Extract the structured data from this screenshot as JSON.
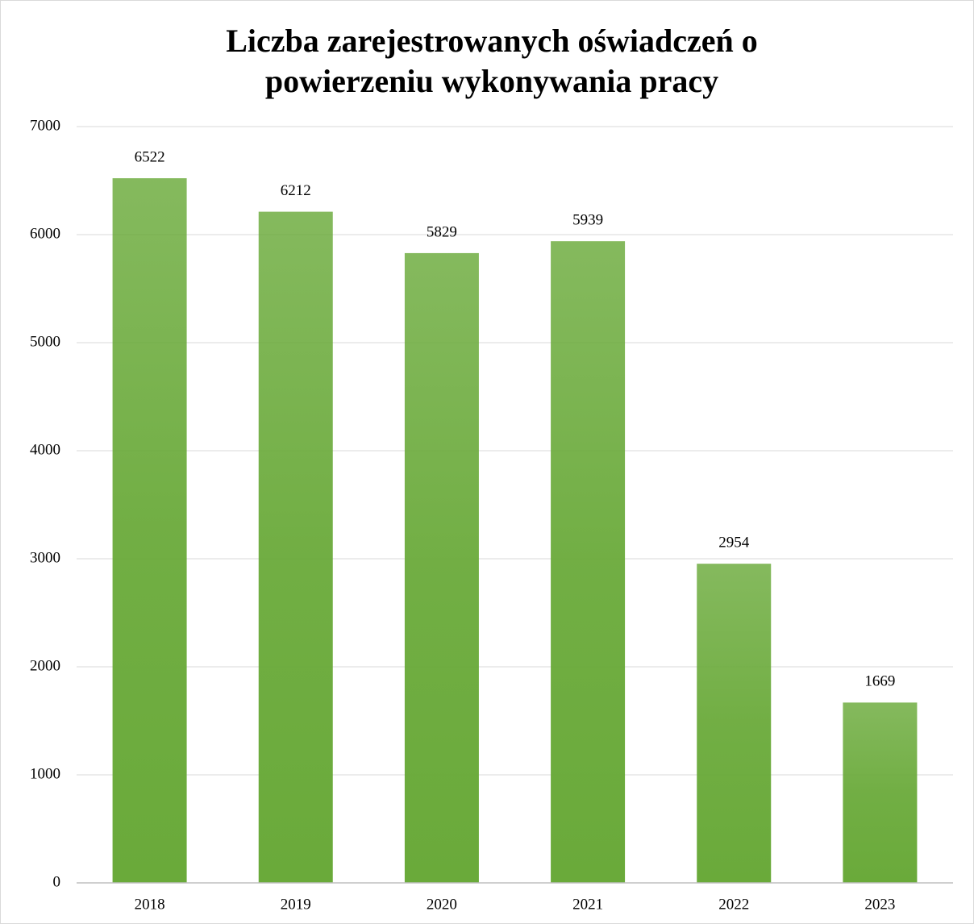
{
  "chart_data": {
    "type": "bar",
    "title": [
      "Liczba zarejestrowanych  oświadczeń o",
      "powierzeniu wykonywania pracy"
    ],
    "categories": [
      "2018",
      "2019",
      "2020",
      "2021",
      "2022",
      "2023"
    ],
    "values": [
      6522,
      6212,
      5829,
      5939,
      2954,
      1669
    ],
    "color": "#6aaa3a",
    "ylim": [
      0,
      7000
    ],
    "yticks": [
      0,
      1000,
      2000,
      3000,
      4000,
      5000,
      6000,
      7000
    ],
    "grid": true
  }
}
